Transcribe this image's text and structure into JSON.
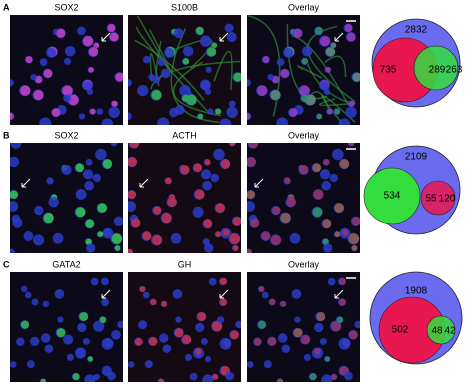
{
  "panels": [
    {
      "label": "A",
      "images": [
        "SOX2",
        "S100B",
        "Overlay"
      ],
      "venn": {
        "total": 2832,
        "left": 735,
        "overlap": 289,
        "right": 263
      }
    },
    {
      "label": "B",
      "images": [
        "SOX2",
        "ACTH",
        "Overlay"
      ],
      "venn": {
        "total": 2109,
        "left": 534,
        "overlap": 55,
        "right": 120
      }
    },
    {
      "label": "C",
      "images": [
        "GATA2",
        "GH",
        "Overlay"
      ],
      "venn": {
        "total": 1908,
        "left": 502,
        "overlap": 48,
        "right": 42
      }
    }
  ]
}
